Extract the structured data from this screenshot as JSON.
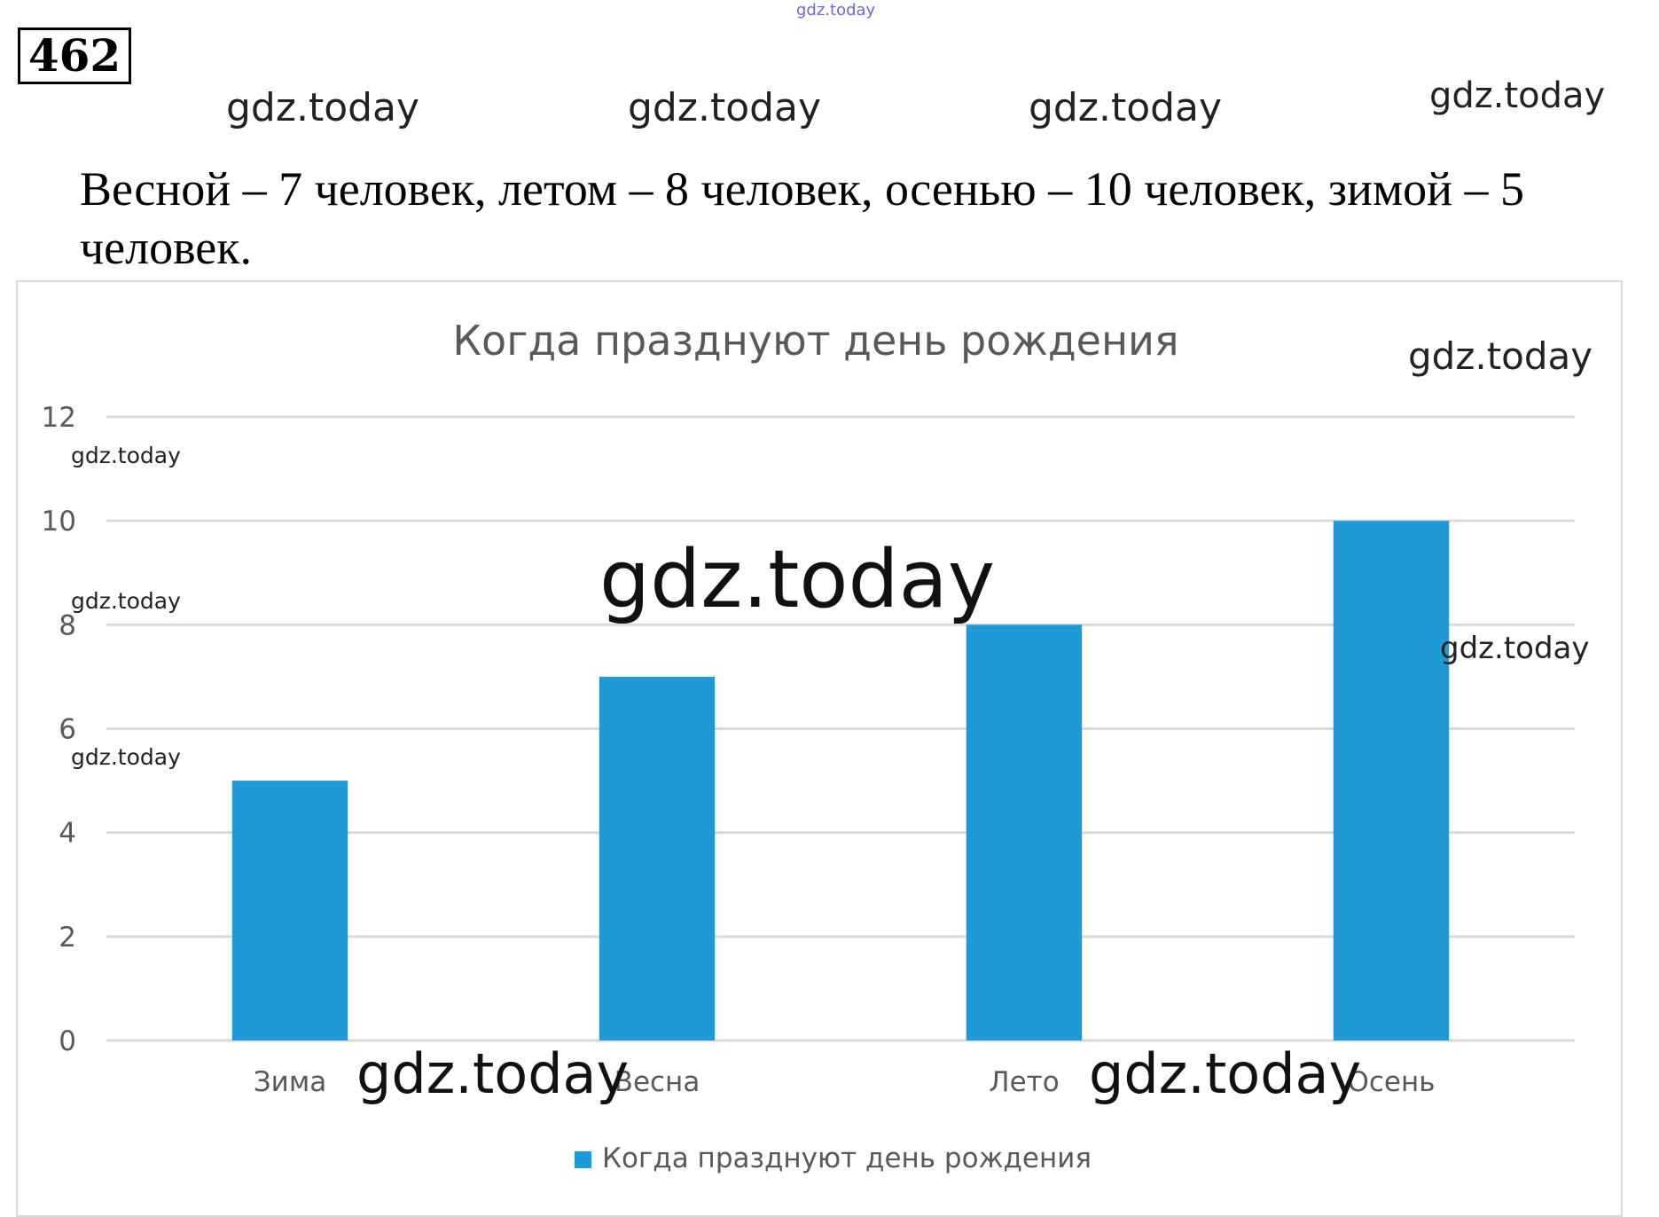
{
  "task_number": "462",
  "watermarks": {
    "top_small": "gdz.today",
    "row": [
      "gdz.today",
      "gdz.today",
      "gdz.today",
      "gdz.today"
    ],
    "chart_title_side": "gdz.today",
    "axis_left": [
      "gdz.today",
      "gdz.today",
      "gdz.today"
    ],
    "center_large": "gdz.today",
    "right_mid": "gdz.today",
    "bottom": [
      "gdz.today",
      "gdz.today"
    ]
  },
  "statement": "Весной – 7 человек, летом – 8 человек, осенью – 10 человек, зимой – 5 человек.",
  "chart_data": {
    "type": "bar",
    "title": "Когда празднуют день рождения",
    "categories": [
      "Зима",
      "Весна",
      "Лето",
      "Осень"
    ],
    "series": [
      {
        "name": "Когда празднуют день рождения",
        "values": [
          5,
          7,
          8,
          10
        ],
        "color": "#1f9ad6"
      }
    ],
    "ylim": [
      0,
      12
    ],
    "yticks": [
      0,
      2,
      4,
      6,
      8,
      10,
      12
    ],
    "xlabel": "",
    "ylabel": "",
    "grid": true,
    "legend_position": "bottom"
  }
}
